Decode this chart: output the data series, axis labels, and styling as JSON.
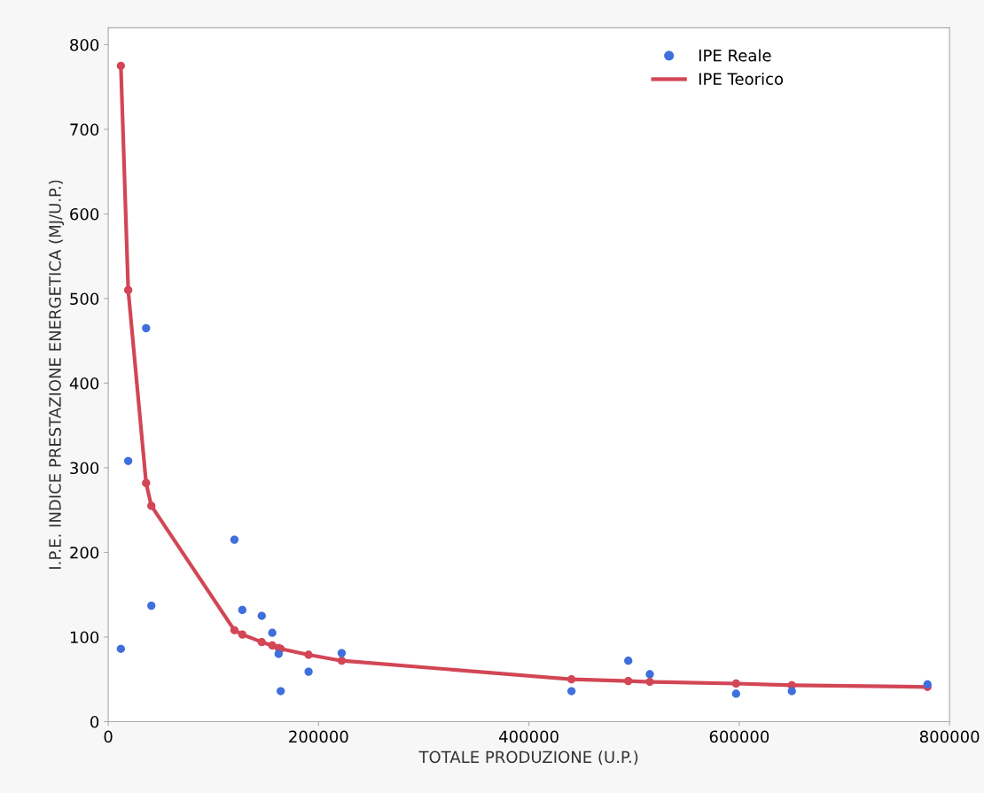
{
  "chart_data": {
    "type": "scatter",
    "xlabel": "TOTALE PRODUZIONE (U.P.)",
    "ylabel": "I.P.E. INDICE PRESTAZIONE ENERGETICA (MJ/U.P.)",
    "x": [
      12000,
      19000,
      36000,
      41000,
      120000,
      127500,
      146000,
      156000,
      162000,
      164000,
      190500,
      222000,
      440500,
      494500,
      515000,
      597000,
      650000,
      779000
    ],
    "series": [
      {
        "name": "IPE Reale",
        "color": "#3f6fdc",
        "marker": "circle",
        "values": [
          86,
          308,
          465,
          137,
          215,
          132,
          125,
          105,
          80,
          36,
          59,
          81,
          36,
          72,
          56,
          33,
          36,
          44
        ]
      },
      {
        "name": "IPE Teorico",
        "type": "line",
        "color": "#d24655",
        "marker": "circle",
        "line_style": "solid",
        "values": [
          775,
          510,
          282,
          255,
          108,
          103,
          94,
          90,
          87,
          86,
          79,
          72,
          50,
          48,
          47,
          45,
          43,
          41
        ]
      }
    ],
    "xlim": [
      0,
      800000
    ],
    "ylim": [
      0,
      820
    ],
    "xticks": [
      0,
      200000,
      400000,
      600000,
      800000
    ],
    "yticks": [
      0,
      100,
      200,
      300,
      400,
      500,
      600,
      700,
      800
    ],
    "grid": false,
    "legend": "top right"
  }
}
